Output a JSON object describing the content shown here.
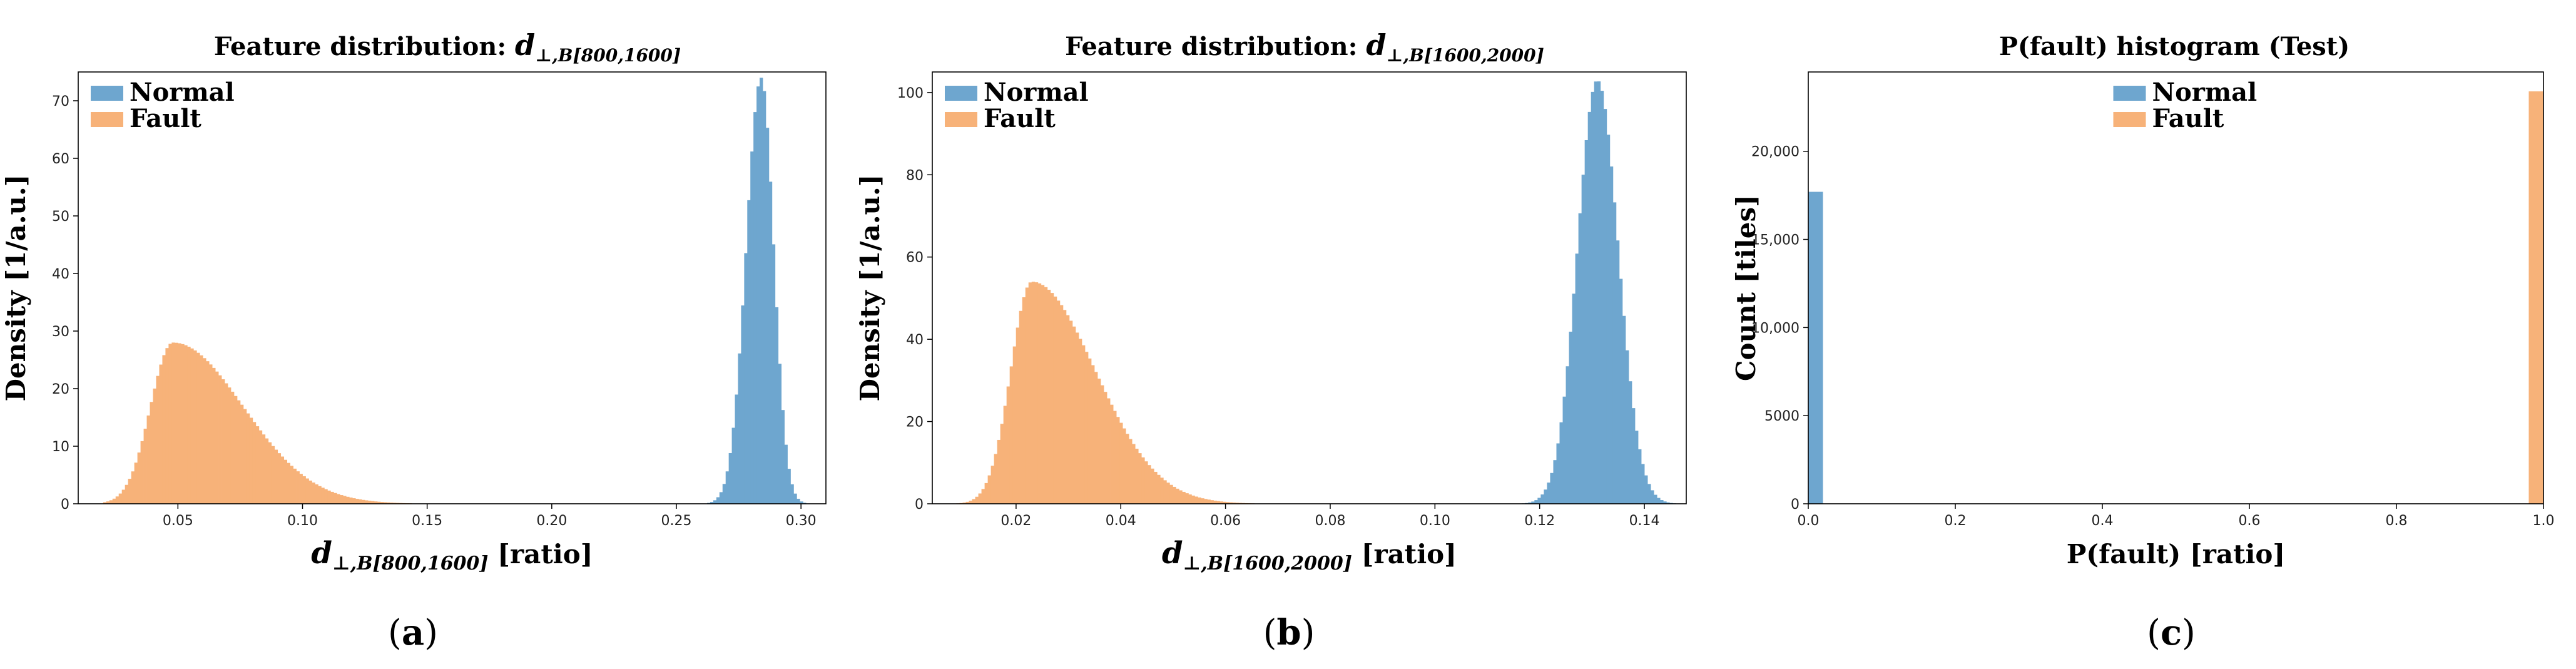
{
  "colors": {
    "normal": "#6ea6cf",
    "fault": "#f7b279"
  },
  "chart_data": [
    {
      "type": "bar",
      "panel": "a",
      "title": "Feature distribution: d⊥,B[800,1600]",
      "title_prefix": "Feature distribution: ",
      "title_symbol": "d",
      "title_subscript": "⊥,B[800,1600]",
      "xlabel": "d⊥,B[800,1600] [ratio]",
      "xlabel_symbol": "d",
      "xlabel_subscript": "⊥,B[800,1600]",
      "xlabel_suffix": " [ratio]",
      "ylabel": "Density [1/a.u.]",
      "xlim": [
        0.01,
        0.31
      ],
      "ylim": [
        0,
        75
      ],
      "xticks": [
        0.05,
        0.1,
        0.15,
        0.2,
        0.25,
        0.3
      ],
      "xtick_labels": [
        "0.05",
        "0.10",
        "0.15",
        "0.20",
        "0.25",
        "0.30"
      ],
      "yticks": [
        0,
        10,
        20,
        30,
        40,
        50,
        60,
        70
      ],
      "ytick_labels": [
        "0",
        "10",
        "20",
        "30",
        "40",
        "50",
        "60",
        "70"
      ],
      "legend": [
        "Normal",
        "Fault"
      ],
      "legend_position": "top-left",
      "series": [
        {
          "name": "Normal",
          "shape": "skew-normal",
          "peak_x": 0.284,
          "peak_y": 74,
          "left_width": 0.006,
          "right_width": 0.005,
          "range": [
            0.24,
            0.302
          ]
        },
        {
          "name": "Fault",
          "shape": "right-skewed",
          "peak_x": 0.048,
          "peak_y": 28,
          "left_width": 0.009,
          "right_width": 0.028,
          "range": [
            0.02,
            0.24
          ]
        }
      ]
    },
    {
      "type": "bar",
      "panel": "b",
      "title": "Feature distribution: d⊥,B[1600,2000]",
      "title_prefix": "Feature distribution: ",
      "title_symbol": "d",
      "title_subscript": "⊥,B[1600,2000]",
      "xlabel": "d⊥,B[1600,2000] [ratio]",
      "xlabel_symbol": "d",
      "xlabel_subscript": "⊥,B[1600,2000]",
      "xlabel_suffix": " [ratio]",
      "ylabel": "Density [1/a.u.]",
      "xlim": [
        0.004,
        0.148
      ],
      "ylim": [
        0,
        105
      ],
      "xticks": [
        0.02,
        0.04,
        0.06,
        0.08,
        0.1,
        0.12,
        0.14
      ],
      "xtick_labels": [
        "0.02",
        "0.04",
        "0.06",
        "0.08",
        "0.10",
        "0.12",
        "0.14"
      ],
      "yticks": [
        0,
        20,
        40,
        60,
        80,
        100
      ],
      "ytick_labels": [
        "0",
        "20",
        "40",
        "60",
        "80",
        "100"
      ],
      "legend": [
        "Normal",
        "Fault"
      ],
      "legend_position": "top-left",
      "series": [
        {
          "name": "Normal",
          "shape": "skew-normal",
          "peak_x": 0.131,
          "peak_y": 103,
          "left_width": 0.0038,
          "right_width": 0.004,
          "range": [
            0.11,
            0.146
          ]
        },
        {
          "name": "Fault",
          "shape": "right-skewed",
          "peak_x": 0.023,
          "peak_y": 54,
          "left_width": 0.004,
          "right_width": 0.012,
          "range": [
            0.008,
            0.12
          ]
        }
      ]
    },
    {
      "type": "bar",
      "panel": "c",
      "title": "P(fault) histogram (Test)",
      "xlabel": "P(fault) [ratio]",
      "ylabel": "Count [tiles]",
      "xlim": [
        0.0,
        1.0
      ],
      "ylim": [
        0,
        24500
      ],
      "xticks": [
        0.0,
        0.2,
        0.4,
        0.6,
        0.8,
        1.0
      ],
      "xtick_labels": [
        "0.0",
        "0.2",
        "0.4",
        "0.6",
        "0.8",
        "1.0"
      ],
      "yticks": [
        0,
        5000,
        10000,
        15000,
        20000
      ],
      "ytick_labels": [
        "0",
        "5000",
        "10,000",
        "15,000",
        "20,000"
      ],
      "legend": [
        "Normal",
        "Fault"
      ],
      "legend_position": "top-center",
      "series": [
        {
          "name": "Normal",
          "bins": [
            [
              0.0,
              0.02
            ]
          ],
          "counts": [
            17700
          ]
        },
        {
          "name": "Fault",
          "bins": [
            [
              0.98,
              1.0
            ]
          ],
          "counts": [
            23400
          ]
        }
      ]
    }
  ],
  "captions": {
    "a": "a",
    "b": "b",
    "c": "c"
  }
}
